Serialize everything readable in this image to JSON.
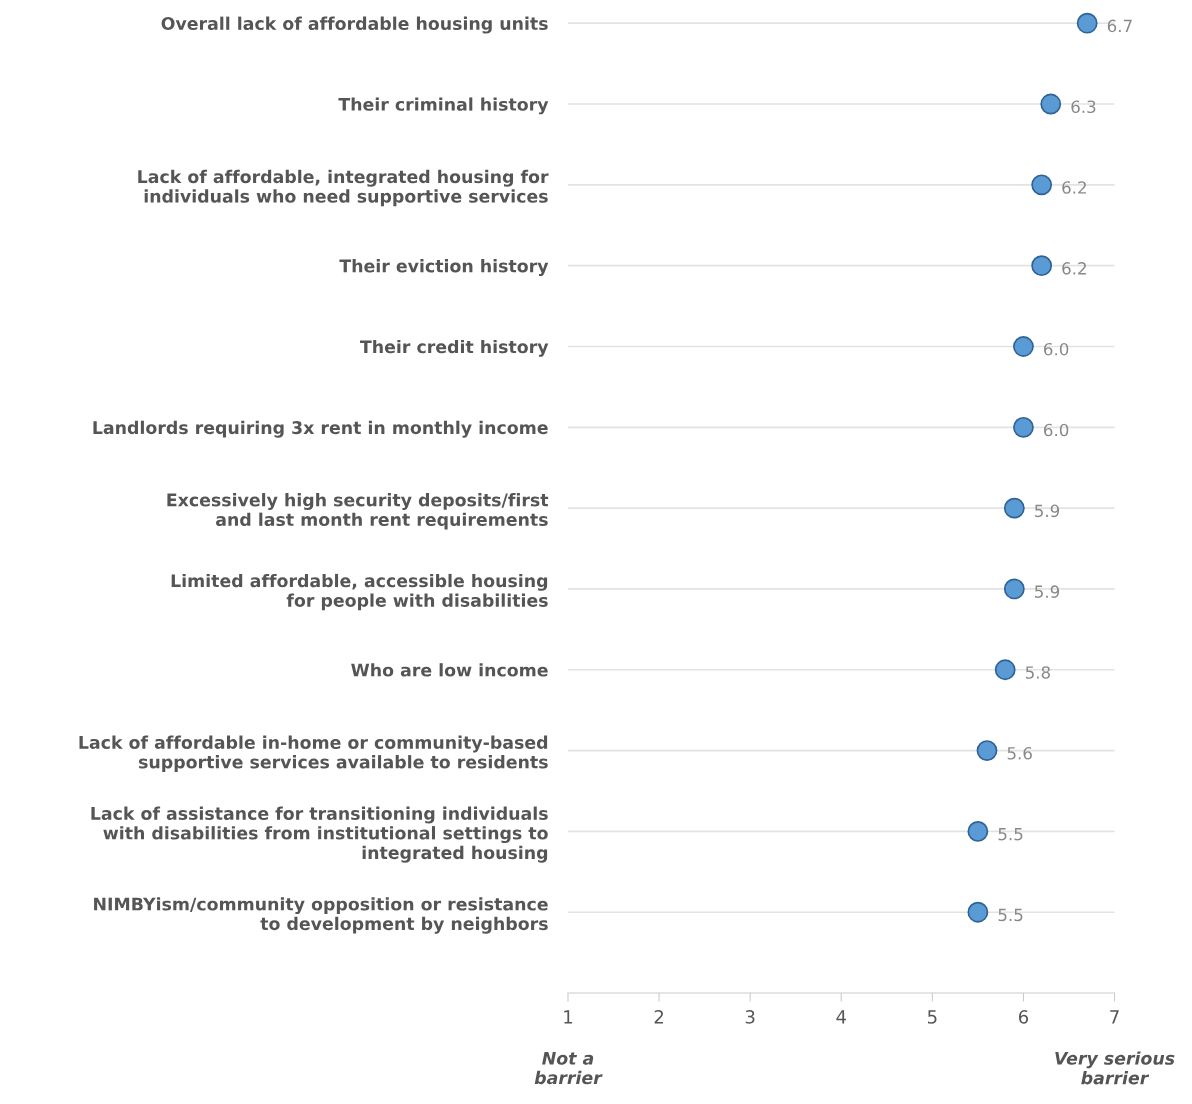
{
  "chart_data": {
    "type": "scatter",
    "orientation": "horizontal",
    "categories": [
      "Overall lack of affordable housing units",
      "Their criminal history",
      "Lack of affordable, integrated housing for\nindividuals who need supportive services",
      "Their eviction history",
      "Their credit history",
      "Landlords requiring 3x rent in monthly income",
      "Excessively high security deposits/first\nand last month rent requirements",
      "Limited affordable, accessible housing\nfor people with disabilities",
      "Who are low income",
      "Lack of affordable in-home or community-based\nsupportive services available to residents",
      "Lack of assistance for transitioning individuals\nwith disabilities from institutional settings to\nintegrated housing",
      "NIMBYism/community opposition or resistance\nto development by neighbors"
    ],
    "values": [
      6.7,
      6.3,
      6.2,
      6.2,
      6.0,
      6.0,
      5.9,
      5.9,
      5.8,
      5.6,
      5.5,
      5.5
    ],
    "value_labels": [
      "6.7",
      "6.3",
      "6.2",
      "6.2",
      "6.0",
      "6.0",
      "5.9",
      "5.9",
      "5.8",
      "5.6",
      "5.5",
      "5.5"
    ],
    "color": "#5b9bd5",
    "xlim": [
      1,
      7
    ],
    "xticks": [
      1,
      2,
      3,
      4,
      5,
      6,
      7
    ],
    "grid": "y",
    "marker": "circle",
    "annotations": [
      "Not a\nbarrier",
      "Very serious\nbarrier"
    ]
  }
}
